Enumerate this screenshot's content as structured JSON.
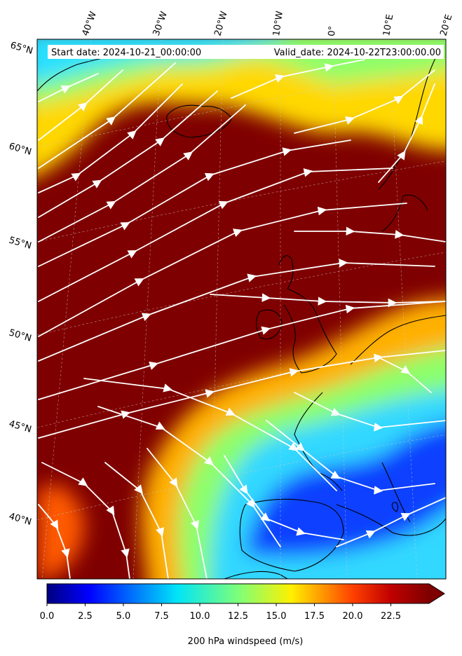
{
  "map": {
    "start_date": "Start date: 2024-10-21_00:00:00",
    "valid_date": "Valid_date: 2024-10-22T23:00:00.00",
    "lon_labels": [
      "40°W",
      "30°W",
      "20°W",
      "10°W",
      "0°",
      "10°E",
      "20°E"
    ],
    "lat_labels": [
      "65°N",
      "60°N",
      "55°N",
      "50°N",
      "45°N",
      "40°N"
    ],
    "colormap": "jet",
    "overlay": "streamlines",
    "streamline_color": "#ffffff",
    "coastline_color": "#000000",
    "gridline_style": "dashed"
  },
  "colorbar": {
    "label": "200 hPa windspeed (m/s)",
    "min": 0,
    "max": 25,
    "extend": "max",
    "ticks": [
      "0.0",
      "2.5",
      "5.0",
      "7.5",
      "10.0",
      "12.5",
      "15.0",
      "17.5",
      "20.0",
      "22.5"
    ],
    "tick_values": [
      0,
      2.5,
      5,
      7.5,
      10,
      12.5,
      15,
      17.5,
      20,
      22.5
    ]
  }
}
